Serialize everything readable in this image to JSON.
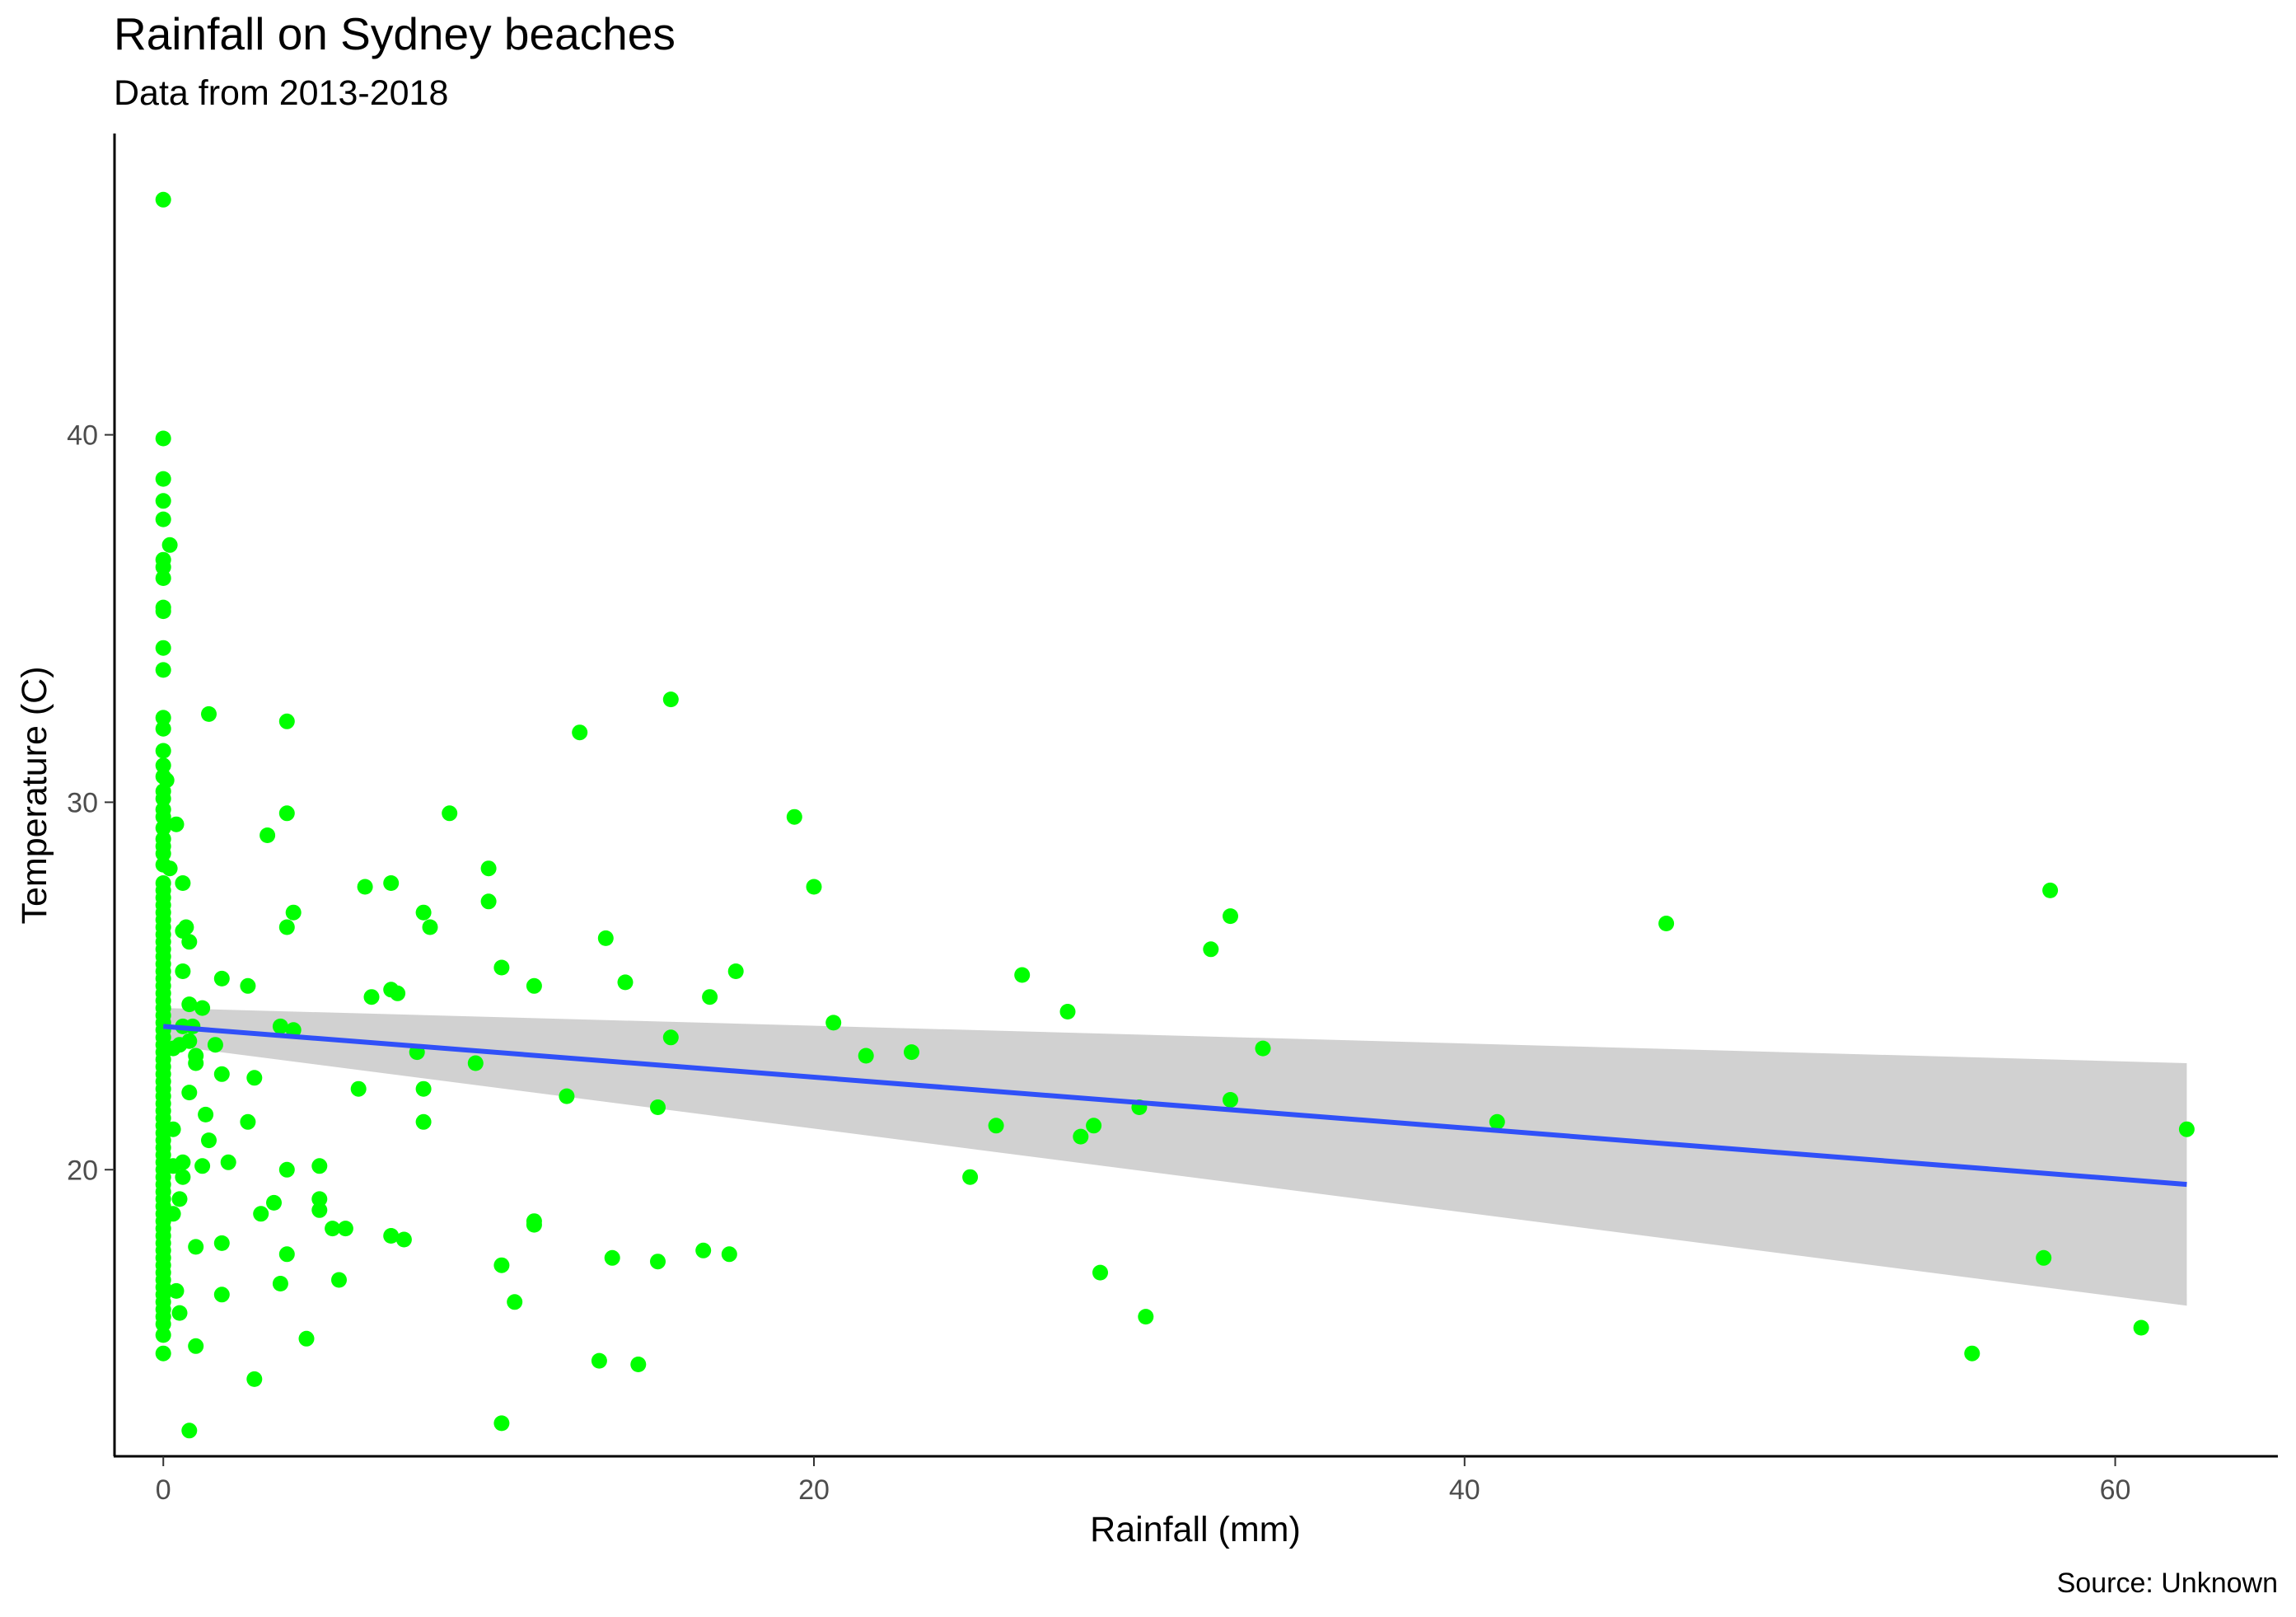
{
  "chart_data": {
    "type": "scatter",
    "title": "Rainfall on Sydney beaches",
    "subtitle": "Data from 2013-2018",
    "caption": "Source: Unknown",
    "xlabel": "Rainfall (mm)",
    "ylabel": "Temperature (C)",
    "xlim": [
      -1.5,
      65.0
    ],
    "ylim": [
      12.2,
      48.2
    ],
    "xticks": [
      0,
      20,
      40,
      60
    ],
    "yticks": [
      20,
      30,
      40
    ],
    "grid": false,
    "legend": "none",
    "point_color": "#00ff00",
    "trend_color": "#3050f8",
    "band_color": "#cccccc",
    "trend": {
      "method": "linear",
      "x_range": [
        0,
        62.2
      ],
      "y_start": 23.9,
      "y_end": 19.6,
      "band_start": [
        23.4,
        24.4
      ],
      "band_end": [
        16.3,
        22.9
      ]
    },
    "points": [
      [
        0,
        46.4
      ],
      [
        0,
        39.9
      ],
      [
        0,
        38.8
      ],
      [
        0,
        38.2
      ],
      [
        0,
        37.7
      ],
      [
        0.2,
        37.0
      ],
      [
        0,
        36.6
      ],
      [
        0,
        36.4
      ],
      [
        0,
        36.1
      ],
      [
        0,
        35.3
      ],
      [
        0,
        35.2
      ],
      [
        0,
        34.2
      ],
      [
        0,
        33.6
      ],
      [
        0,
        32.3
      ],
      [
        0,
        32.0
      ],
      [
        0,
        31.4
      ],
      [
        0,
        31.0
      ],
      [
        0,
        30.7
      ],
      [
        0.1,
        30.6
      ],
      [
        0,
        30.3
      ],
      [
        0,
        30.1
      ],
      [
        0,
        29.8
      ],
      [
        0,
        29.6
      ],
      [
        0.4,
        29.4
      ],
      [
        0,
        29.3
      ],
      [
        0,
        29.0
      ],
      [
        0,
        28.8
      ],
      [
        0,
        28.6
      ],
      [
        0,
        28.3
      ],
      [
        0.2,
        28.2
      ],
      [
        0,
        27.8
      ],
      [
        0,
        27.6
      ],
      [
        0,
        27.4
      ],
      [
        0,
        27.2
      ],
      [
        0,
        27.0
      ],
      [
        0,
        26.8
      ],
      [
        0,
        26.6
      ],
      [
        0,
        26.4
      ],
      [
        0,
        26.2
      ],
      [
        0,
        26.0
      ],
      [
        0,
        25.8
      ],
      [
        0,
        25.6
      ],
      [
        0,
        25.4
      ],
      [
        0,
        25.2
      ],
      [
        0,
        25.0
      ],
      [
        0,
        24.8
      ],
      [
        0,
        24.6
      ],
      [
        0,
        24.4
      ],
      [
        0,
        24.2
      ],
      [
        0,
        24.0
      ],
      [
        0,
        23.8
      ],
      [
        0,
        23.6
      ],
      [
        0,
        23.4
      ],
      [
        0,
        23.2
      ],
      [
        0,
        23.0
      ],
      [
        0,
        22.8
      ],
      [
        0,
        22.6
      ],
      [
        0,
        22.4
      ],
      [
        0,
        22.2
      ],
      [
        0,
        22.0
      ],
      [
        0,
        21.8
      ],
      [
        0,
        21.6
      ],
      [
        0,
        21.4
      ],
      [
        0,
        21.2
      ],
      [
        0,
        21.0
      ],
      [
        0,
        20.8
      ],
      [
        0,
        20.6
      ],
      [
        0,
        20.4
      ],
      [
        0,
        20.2
      ],
      [
        0,
        20.0
      ],
      [
        0,
        19.8
      ],
      [
        0,
        19.6
      ],
      [
        0,
        19.4
      ],
      [
        0,
        19.2
      ],
      [
        0,
        19.0
      ],
      [
        0,
        18.8
      ],
      [
        0,
        18.6
      ],
      [
        0,
        18.4
      ],
      [
        0,
        18.2
      ],
      [
        0,
        18.0
      ],
      [
        0,
        17.8
      ],
      [
        0,
        17.6
      ],
      [
        0,
        17.4
      ],
      [
        0,
        17.2
      ],
      [
        0,
        17.0
      ],
      [
        0,
        16.8
      ],
      [
        0,
        16.6
      ],
      [
        0,
        16.4
      ],
      [
        0,
        16.2
      ],
      [
        0,
        16.0
      ],
      [
        0,
        15.8
      ],
      [
        0,
        15.5
      ],
      [
        0,
        15.0
      ],
      [
        0.6,
        27.8
      ],
      [
        0.6,
        26.5
      ],
      [
        0.7,
        26.6
      ],
      [
        0.8,
        26.2
      ],
      [
        0.6,
        25.4
      ],
      [
        0.8,
        24.5
      ],
      [
        1.2,
        24.4
      ],
      [
        0.6,
        23.9
      ],
      [
        0.9,
        23.9
      ],
      [
        0.8,
        23.5
      ],
      [
        0.3,
        23.3
      ],
      [
        0.5,
        23.4
      ],
      [
        1.0,
        23.1
      ],
      [
        1.0,
        22.9
      ],
      [
        0.8,
        22.1
      ],
      [
        0.3,
        21.1
      ],
      [
        0.3,
        20.1
      ],
      [
        0.6,
        20.2
      ],
      [
        0.6,
        19.8
      ],
      [
        0.5,
        19.2
      ],
      [
        0.3,
        18.8
      ],
      [
        0.4,
        16.7
      ],
      [
        0.5,
        16.1
      ],
      [
        1.0,
        15.2
      ],
      [
        0.8,
        12.9
      ],
      [
        1.3,
        21.5
      ],
      [
        1.4,
        20.8
      ],
      [
        1.2,
        20.1
      ],
      [
        1.0,
        17.9
      ],
      [
        1.4,
        32.4
      ],
      [
        1.8,
        25.2
      ],
      [
        1.6,
        23.4
      ],
      [
        1.8,
        22.6
      ],
      [
        2.0,
        20.2
      ],
      [
        1.8,
        18.0
      ],
      [
        1.8,
        16.6
      ],
      [
        2.6,
        25.0
      ],
      [
        2.6,
        21.3
      ],
      [
        2.8,
        22.5
      ],
      [
        3.0,
        18.8
      ],
      [
        3.2,
        29.1
      ],
      [
        3.4,
        19.1
      ],
      [
        2.8,
        14.3
      ],
      [
        3.8,
        32.2
      ],
      [
        3.8,
        29.7
      ],
      [
        4.0,
        27.0
      ],
      [
        3.8,
        26.6
      ],
      [
        3.6,
        23.9
      ],
      [
        4.0,
        23.8
      ],
      [
        3.8,
        20.0
      ],
      [
        3.8,
        17.7
      ],
      [
        3.6,
        16.9
      ],
      [
        4.4,
        15.4
      ],
      [
        4.8,
        20.1
      ],
      [
        4.8,
        19.2
      ],
      [
        4.8,
        18.9
      ],
      [
        5.2,
        18.4
      ],
      [
        5.4,
        17.0
      ],
      [
        5.6,
        18.4
      ],
      [
        6.0,
        22.2
      ],
      [
        6.2,
        27.7
      ],
      [
        6.4,
        24.7
      ],
      [
        7.0,
        27.8
      ],
      [
        7.0,
        24.9
      ],
      [
        7.2,
        24.8
      ],
      [
        7.0,
        18.2
      ],
      [
        7.4,
        18.1
      ],
      [
        7.8,
        23.2
      ],
      [
        8.0,
        27.0
      ],
      [
        8.2,
        26.6
      ],
      [
        8.0,
        22.2
      ],
      [
        8.0,
        21.3
      ],
      [
        8.8,
        29.7
      ],
      [
        9.6,
        22.9
      ],
      [
        10.0,
        28.2
      ],
      [
        10.0,
        27.3
      ],
      [
        10.4,
        25.5
      ],
      [
        10.4,
        17.4
      ],
      [
        10.4,
        13.1
      ],
      [
        10.8,
        16.4
      ],
      [
        11.4,
        25.0
      ],
      [
        11.4,
        18.6
      ],
      [
        11.4,
        18.5
      ],
      [
        12.8,
        31.9
      ],
      [
        12.4,
        22.0
      ],
      [
        13.6,
        26.3
      ],
      [
        13.8,
        17.6
      ],
      [
        13.4,
        14.8
      ],
      [
        14.2,
        25.1
      ],
      [
        14.6,
        14.7
      ],
      [
        15.6,
        32.8
      ],
      [
        15.6,
        23.6
      ],
      [
        15.2,
        21.7
      ],
      [
        15.2,
        17.5
      ],
      [
        16.8,
        24.7
      ],
      [
        16.6,
        17.8
      ],
      [
        17.4,
        17.7
      ],
      [
        17.6,
        25.4
      ],
      [
        19.4,
        29.6
      ],
      [
        20.0,
        27.7
      ],
      [
        20.6,
        24.0
      ],
      [
        21.6,
        23.1
      ],
      [
        23.0,
        23.2
      ],
      [
        24.8,
        19.8
      ],
      [
        25.6,
        21.2
      ],
      [
        26.4,
        25.3
      ],
      [
        27.8,
        24.3
      ],
      [
        28.2,
        20.9
      ],
      [
        28.6,
        21.2
      ],
      [
        28.8,
        17.2
      ],
      [
        30.0,
        21.7
      ],
      [
        30.2,
        16.0
      ],
      [
        32.2,
        26.0
      ],
      [
        32.8,
        26.9
      ],
      [
        32.8,
        21.9
      ],
      [
        33.8,
        23.3
      ],
      [
        41.0,
        21.3
      ],
      [
        46.2,
        26.7
      ],
      [
        55.6,
        15.0
      ],
      [
        57.8,
        17.6
      ],
      [
        58.0,
        27.6
      ],
      [
        60.8,
        15.7
      ],
      [
        62.2,
        21.1
      ]
    ]
  }
}
